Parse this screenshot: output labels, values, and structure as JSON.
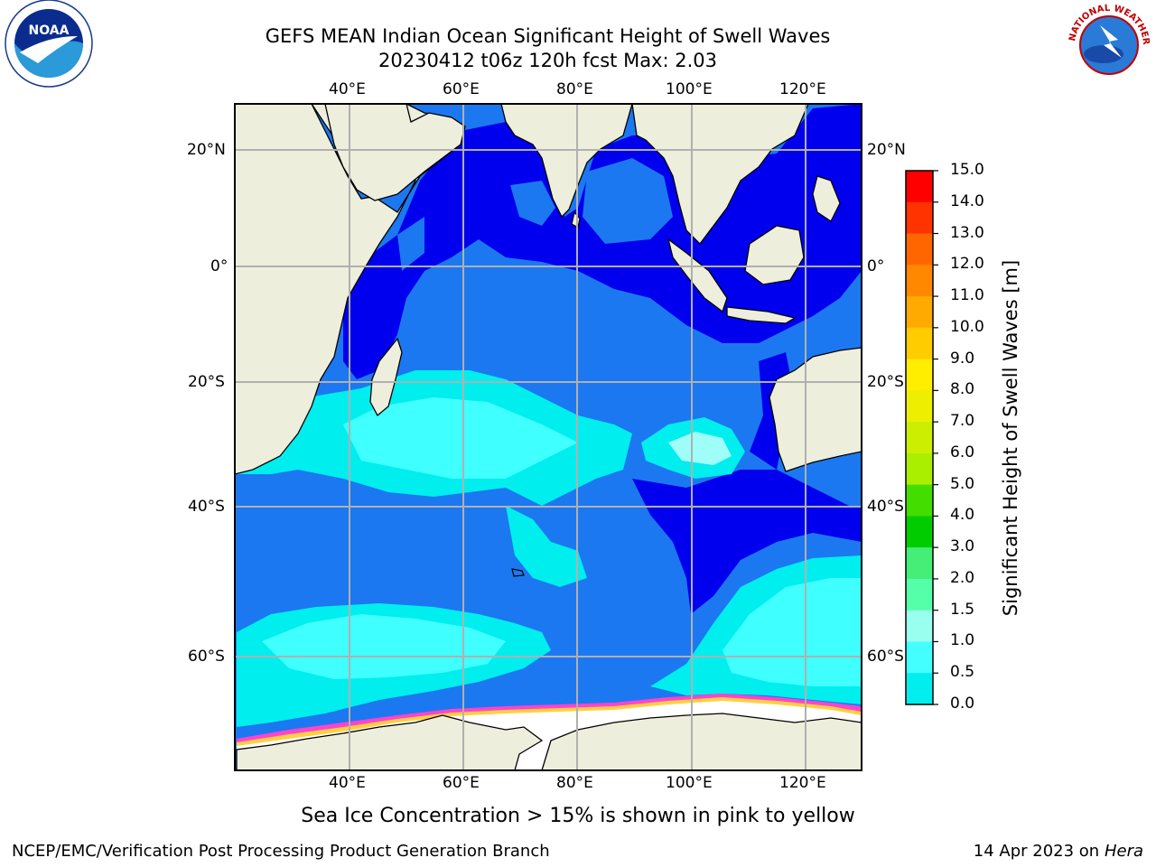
{
  "title": {
    "line1": "GEFS MEAN Indian Ocean Significant Height of Swell Waves",
    "line2": "20230412 t06z 120h fcst   Max: 2.03"
  },
  "logos": {
    "noaa_text": "NOAA",
    "nws_text": "NATIONAL WEATHER SERVICE"
  },
  "map": {
    "lon_labels": [
      "40°E",
      "60°E",
      "80°E",
      "100°E",
      "120°E"
    ],
    "lat_labels_left": [
      "20°N",
      "0°",
      "20°S",
      "40°S",
      "60°S"
    ],
    "lat_labels_right": [
      "20°N",
      "0°",
      "20°S",
      "40°S",
      "60°S"
    ],
    "colors": {
      "land": "#eeeedd",
      "deep_blue": "#0000ee",
      "blue": "#1c78f0",
      "cyan": "#00eeee",
      "light_cyan": "#40ffff",
      "pale_cyan": "#9ffff8",
      "ice_white": "#ffffff",
      "ice_pink": "#ff44cc",
      "ice_yellow": "#ffd040",
      "gridline": "#b0b0b0"
    }
  },
  "colorbar": {
    "title": "Significant Height of Swell Waves [m]",
    "ticks": [
      "15.0",
      "14.0",
      "13.0",
      "12.0",
      "11.0",
      "10.0",
      "9.0",
      "8.0",
      "7.0",
      "6.0",
      "5.0",
      "4.0",
      "3.0",
      "2.0",
      "1.5",
      "1.0",
      "0.5",
      "0.0"
    ],
    "bin_colors": [
      "#ff0000",
      "#ff3300",
      "#ff6600",
      "#ff8800",
      "#ffaa00",
      "#ffcc00",
      "#ffee00",
      "#eeee00",
      "#ccee00",
      "#aaee00",
      "#44dd00",
      "#00cc00",
      "#44ee77",
      "#55ffaa",
      "#99ffee",
      "#44ffff",
      "#00eeee",
      "#1c78f0",
      "#0000ee"
    ]
  },
  "note": "Sea Ice Concentration > 15% is shown in pink to yellow",
  "footer": {
    "left": "NCEP/EMC/Verification Post Processing Product Generation Branch",
    "right_date": "14 Apr 2023 on ",
    "right_host": "Hera"
  }
}
